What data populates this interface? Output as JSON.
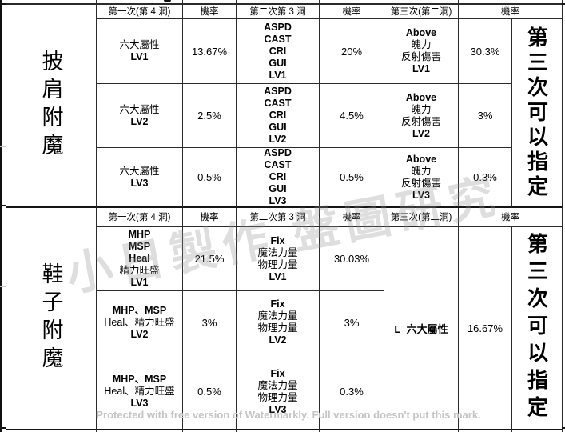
{
  "table": {
    "sections": [
      {
        "label": "披肩附魔",
        "headers": {
          "first": "第一次(第 4 洞)",
          "prob1": "機率",
          "second": "第二次第 3 洞",
          "prob2": "機率",
          "third": "第三次(第二洞)",
          "prob3": "機率"
        },
        "rows": [
          {
            "first": [
              {
                "t": "六大屬性",
                "b": false
              },
              {
                "t": "LV1",
                "b": true
              }
            ],
            "prob1": "13.67%",
            "second": [
              {
                "t": "ASPD",
                "b": true
              },
              {
                "t": "CAST",
                "b": true
              },
              {
                "t": "CRI",
                "b": true
              },
              {
                "t": "GUI",
                "b": true
              },
              {
                "t": "LV1",
                "b": true
              }
            ],
            "prob2": "20%",
            "third": [
              {
                "t": "Above",
                "b": true
              },
              {
                "t": "魄力",
                "b": false
              },
              {
                "t": "反射傷害",
                "b": false
              },
              {
                "t": "LV1",
                "b": true
              }
            ],
            "prob3": "30.3%"
          },
          {
            "first": [
              {
                "t": "六大屬性",
                "b": false
              },
              {
                "t": "LV2",
                "b": true
              }
            ],
            "prob1": "2.5%",
            "second": [
              {
                "t": "ASPD",
                "b": true
              },
              {
                "t": "CAST",
                "b": true
              },
              {
                "t": "CRI",
                "b": true
              },
              {
                "t": "GUI",
                "b": true
              },
              {
                "t": "LV2",
                "b": true
              }
            ],
            "prob2": "4.5%",
            "third": [
              {
                "t": "Above",
                "b": true
              },
              {
                "t": "魄力",
                "b": false
              },
              {
                "t": "反射傷害",
                "b": false
              },
              {
                "t": "LV2",
                "b": true
              }
            ],
            "prob3": "3%"
          },
          {
            "first": [
              {
                "t": "六大屬性",
                "b": false
              },
              {
                "t": "LV3",
                "b": true
              }
            ],
            "prob1": "0.5%",
            "second": [
              {
                "t": "ASPD",
                "b": true
              },
              {
                "t": "CAST",
                "b": true
              },
              {
                "t": "CRI",
                "b": true
              },
              {
                "t": "GUI",
                "b": true
              },
              {
                "t": "LV3",
                "b": true
              }
            ],
            "prob2": "0.5%",
            "third": [
              {
                "t": "Above",
                "b": true
              },
              {
                "t": "魄力",
                "b": false
              },
              {
                "t": "反射傷害",
                "b": false
              },
              {
                "t": "LV3",
                "b": true
              }
            ],
            "prob3": "0.3%"
          }
        ],
        "note": "第三次可以指定"
      },
      {
        "label": "鞋子附魔",
        "headers": {
          "first": "第一次(第 4 洞)",
          "prob1": "機率",
          "second": "第二次第 3 洞",
          "prob2": "機率",
          "third": "第三次(第二洞)",
          "prob3": "機率"
        },
        "rows": [
          {
            "first": [
              {
                "t": "MHP",
                "b": true
              },
              {
                "t": "MSP",
                "b": true
              },
              {
                "t": "Heal",
                "b": true
              },
              {
                "t": "精力旺盛",
                "b": false
              },
              {
                "t": "LV1",
                "b": true
              }
            ],
            "prob1": "21.5%",
            "second": [
              {
                "t": "Fix",
                "b": true
              },
              {
                "t": "魔法力量",
                "b": false
              },
              {
                "t": "物理力量",
                "b": false
              },
              {
                "t": "LV1",
                "b": true
              }
            ],
            "prob2": "30.03%"
          },
          {
            "first": [
              {
                "t": "MHP、MSP",
                "b": true
              },
              {
                "t": "Heal、精力旺盛",
                "b": false
              },
              {
                "t": "LV2",
                "b": true
              }
            ],
            "prob1": "3%",
            "second": [
              {
                "t": "Fix",
                "b": true
              },
              {
                "t": "魔法力量",
                "b": false
              },
              {
                "t": "物理力量",
                "b": false
              },
              {
                "t": "LV2",
                "b": true
              }
            ],
            "prob2": "3%"
          },
          {
            "first": [
              {
                "t": "MHP、MSP",
                "b": true
              },
              {
                "t": "Heal、精力旺盛",
                "b": false
              },
              {
                "t": "LV3",
                "b": true
              }
            ],
            "prob1": "0.5%",
            "second": [
              {
                "t": "Fix",
                "b": true
              },
              {
                "t": "魔法力量",
                "b": false
              },
              {
                "t": "物理力量",
                "b": false
              },
              {
                "t": "LV3",
                "b": true
              }
            ],
            "prob2": "0.3%"
          }
        ],
        "third_merged": "L_六大屬性",
        "third_prob": "16.67%",
        "note": "第三次可以指定"
      }
    ]
  },
  "watermark": {
    "diagonal": "小日製作 盤圖研究",
    "footer": "Protected with free version of Watermarkly. Full version doesn't put this mark."
  }
}
